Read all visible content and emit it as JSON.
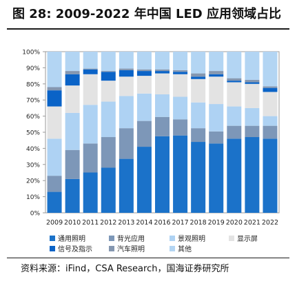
{
  "figure": {
    "title": "图 28:  2009-2022 年中国 LED 应用领域占比",
    "source": "资料来源：iFind，CSA Research，国海证券研究所"
  },
  "chart_data": {
    "type": "bar",
    "stacked": true,
    "categories": [
      "2009",
      "2010",
      "2011",
      "2012",
      "2013",
      "2014",
      "2016",
      "2017",
      "2018",
      "2019",
      "2020",
      "2021",
      "2022"
    ],
    "y_ticks": [
      "0%",
      "10%",
      "20%",
      "30%",
      "40%",
      "50%",
      "60%",
      "70%",
      "80%",
      "90%",
      "100%"
    ],
    "ylim": [
      0,
      100
    ],
    "legend_position": "bottom",
    "series": [
      {
        "name": "通用照明",
        "color": "#1b72c9",
        "values": [
          13,
          21,
          25,
          28,
          33.5,
          41,
          47.5,
          48,
          44,
          43,
          46,
          47,
          46
        ]
      },
      {
        "name": "背光应用",
        "color": "#7d97b8",
        "values": [
          10,
          18,
          18,
          19,
          19,
          16,
          12,
          10,
          8.5,
          7.5,
          8,
          7,
          8
        ]
      },
      {
        "name": "景观照明",
        "color": "#aed2f3",
        "values": [
          23,
          23,
          24,
          22,
          20,
          17,
          14,
          14,
          16,
          17,
          12,
          11,
          6
        ]
      },
      {
        "name": "显示屏",
        "color": "#e3e3e3",
        "values": [
          20,
          17,
          19,
          13,
          12,
          11,
          13,
          14,
          14.5,
          17,
          15,
          15,
          15
        ]
      },
      {
        "name": "信号及指示",
        "color": "#0a63c7",
        "values": [
          10,
          7,
          3,
          5.5,
          4,
          3,
          1.5,
          1.5,
          1.5,
          1.5,
          1,
          1,
          2.5
        ]
      },
      {
        "name": "汽车照明",
        "color": "#8597b0",
        "values": [
          2,
          2,
          0.5,
          0.5,
          1,
          1,
          1,
          1,
          2,
          2,
          1.5,
          1.5,
          1
        ]
      },
      {
        "name": "其他",
        "color": "#b3d5f3",
        "values": [
          22,
          12,
          10.5,
          12,
          10.5,
          11,
          11,
          11.5,
          13.5,
          12,
          16.5,
          17.5,
          21.5
        ]
      }
    ]
  }
}
